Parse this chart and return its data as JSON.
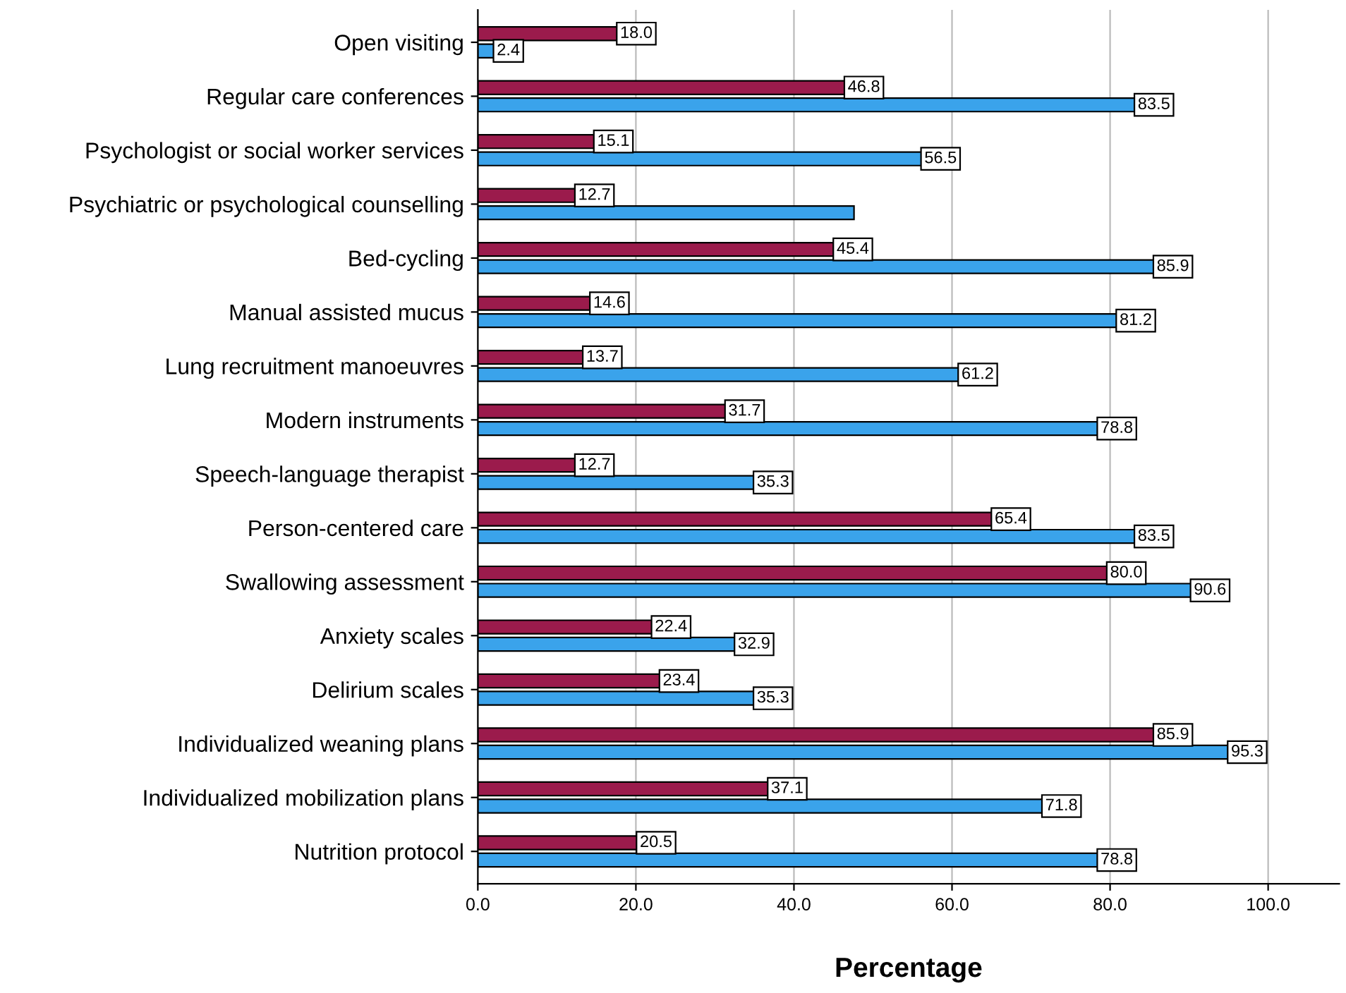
{
  "chart_data": {
    "type": "bar",
    "orientation": "horizontal",
    "xlabel": "Percentage",
    "categories": [
      "Open visiting",
      "Regular care conferences",
      "Psychologist or social worker services",
      "Psychiatric or psychological counselling",
      "Bed-cycling",
      "Manual assisted mucus",
      "Lung recruitment manoeuvres",
      "Modern instruments",
      "Speech-language therapist",
      "Person-centered care",
      "Swallowing assessment",
      "Anxiety scales",
      "Delirium scales",
      "Individualized weaning plans",
      "Individualized mobilization plans",
      "Nutrition protocol"
    ],
    "series": [
      {
        "color": "#9b1b4c",
        "values": [
          18.0,
          46.8,
          15.1,
          12.7,
          45.4,
          14.6,
          13.7,
          31.7,
          12.7,
          65.4,
          80.0,
          22.4,
          23.4,
          85.9,
          37.1,
          20.5
        ],
        "value_labels": [
          "18.0",
          "46.8",
          "15.1",
          "12.7",
          "45.4",
          "14.6",
          "13.7",
          "31.7",
          "12.7",
          "65.4",
          "80.0",
          "22.4",
          "23.4",
          "85.9",
          "37.1",
          "20.5"
        ]
      },
      {
        "color": "#3aa3eb",
        "values": [
          2.4,
          83.5,
          56.5,
          47.6,
          85.9,
          81.2,
          61.2,
          78.8,
          35.3,
          83.5,
          90.6,
          32.9,
          35.3,
          95.3,
          71.8,
          78.8
        ],
        "value_labels": [
          "2.4",
          "83.5",
          "56.5",
          null,
          "85.9",
          "81.2",
          "61.2",
          "78.8",
          "35.3",
          "83.5",
          "90.6",
          "32.9",
          "35.3",
          "95.3",
          "71.8",
          "78.8"
        ]
      }
    ],
    "xlim": [
      0,
      109
    ],
    "xticks": [
      {
        "value": 0,
        "label": "0.0"
      },
      {
        "value": 20,
        "label": "20.0"
      },
      {
        "value": 40,
        "label": "40.0"
      },
      {
        "value": 60,
        "label": "60.0"
      },
      {
        "value": 80,
        "label": "80.0"
      },
      {
        "value": 100,
        "label": "100.0"
      }
    ],
    "grid": "x",
    "legend": false
  }
}
